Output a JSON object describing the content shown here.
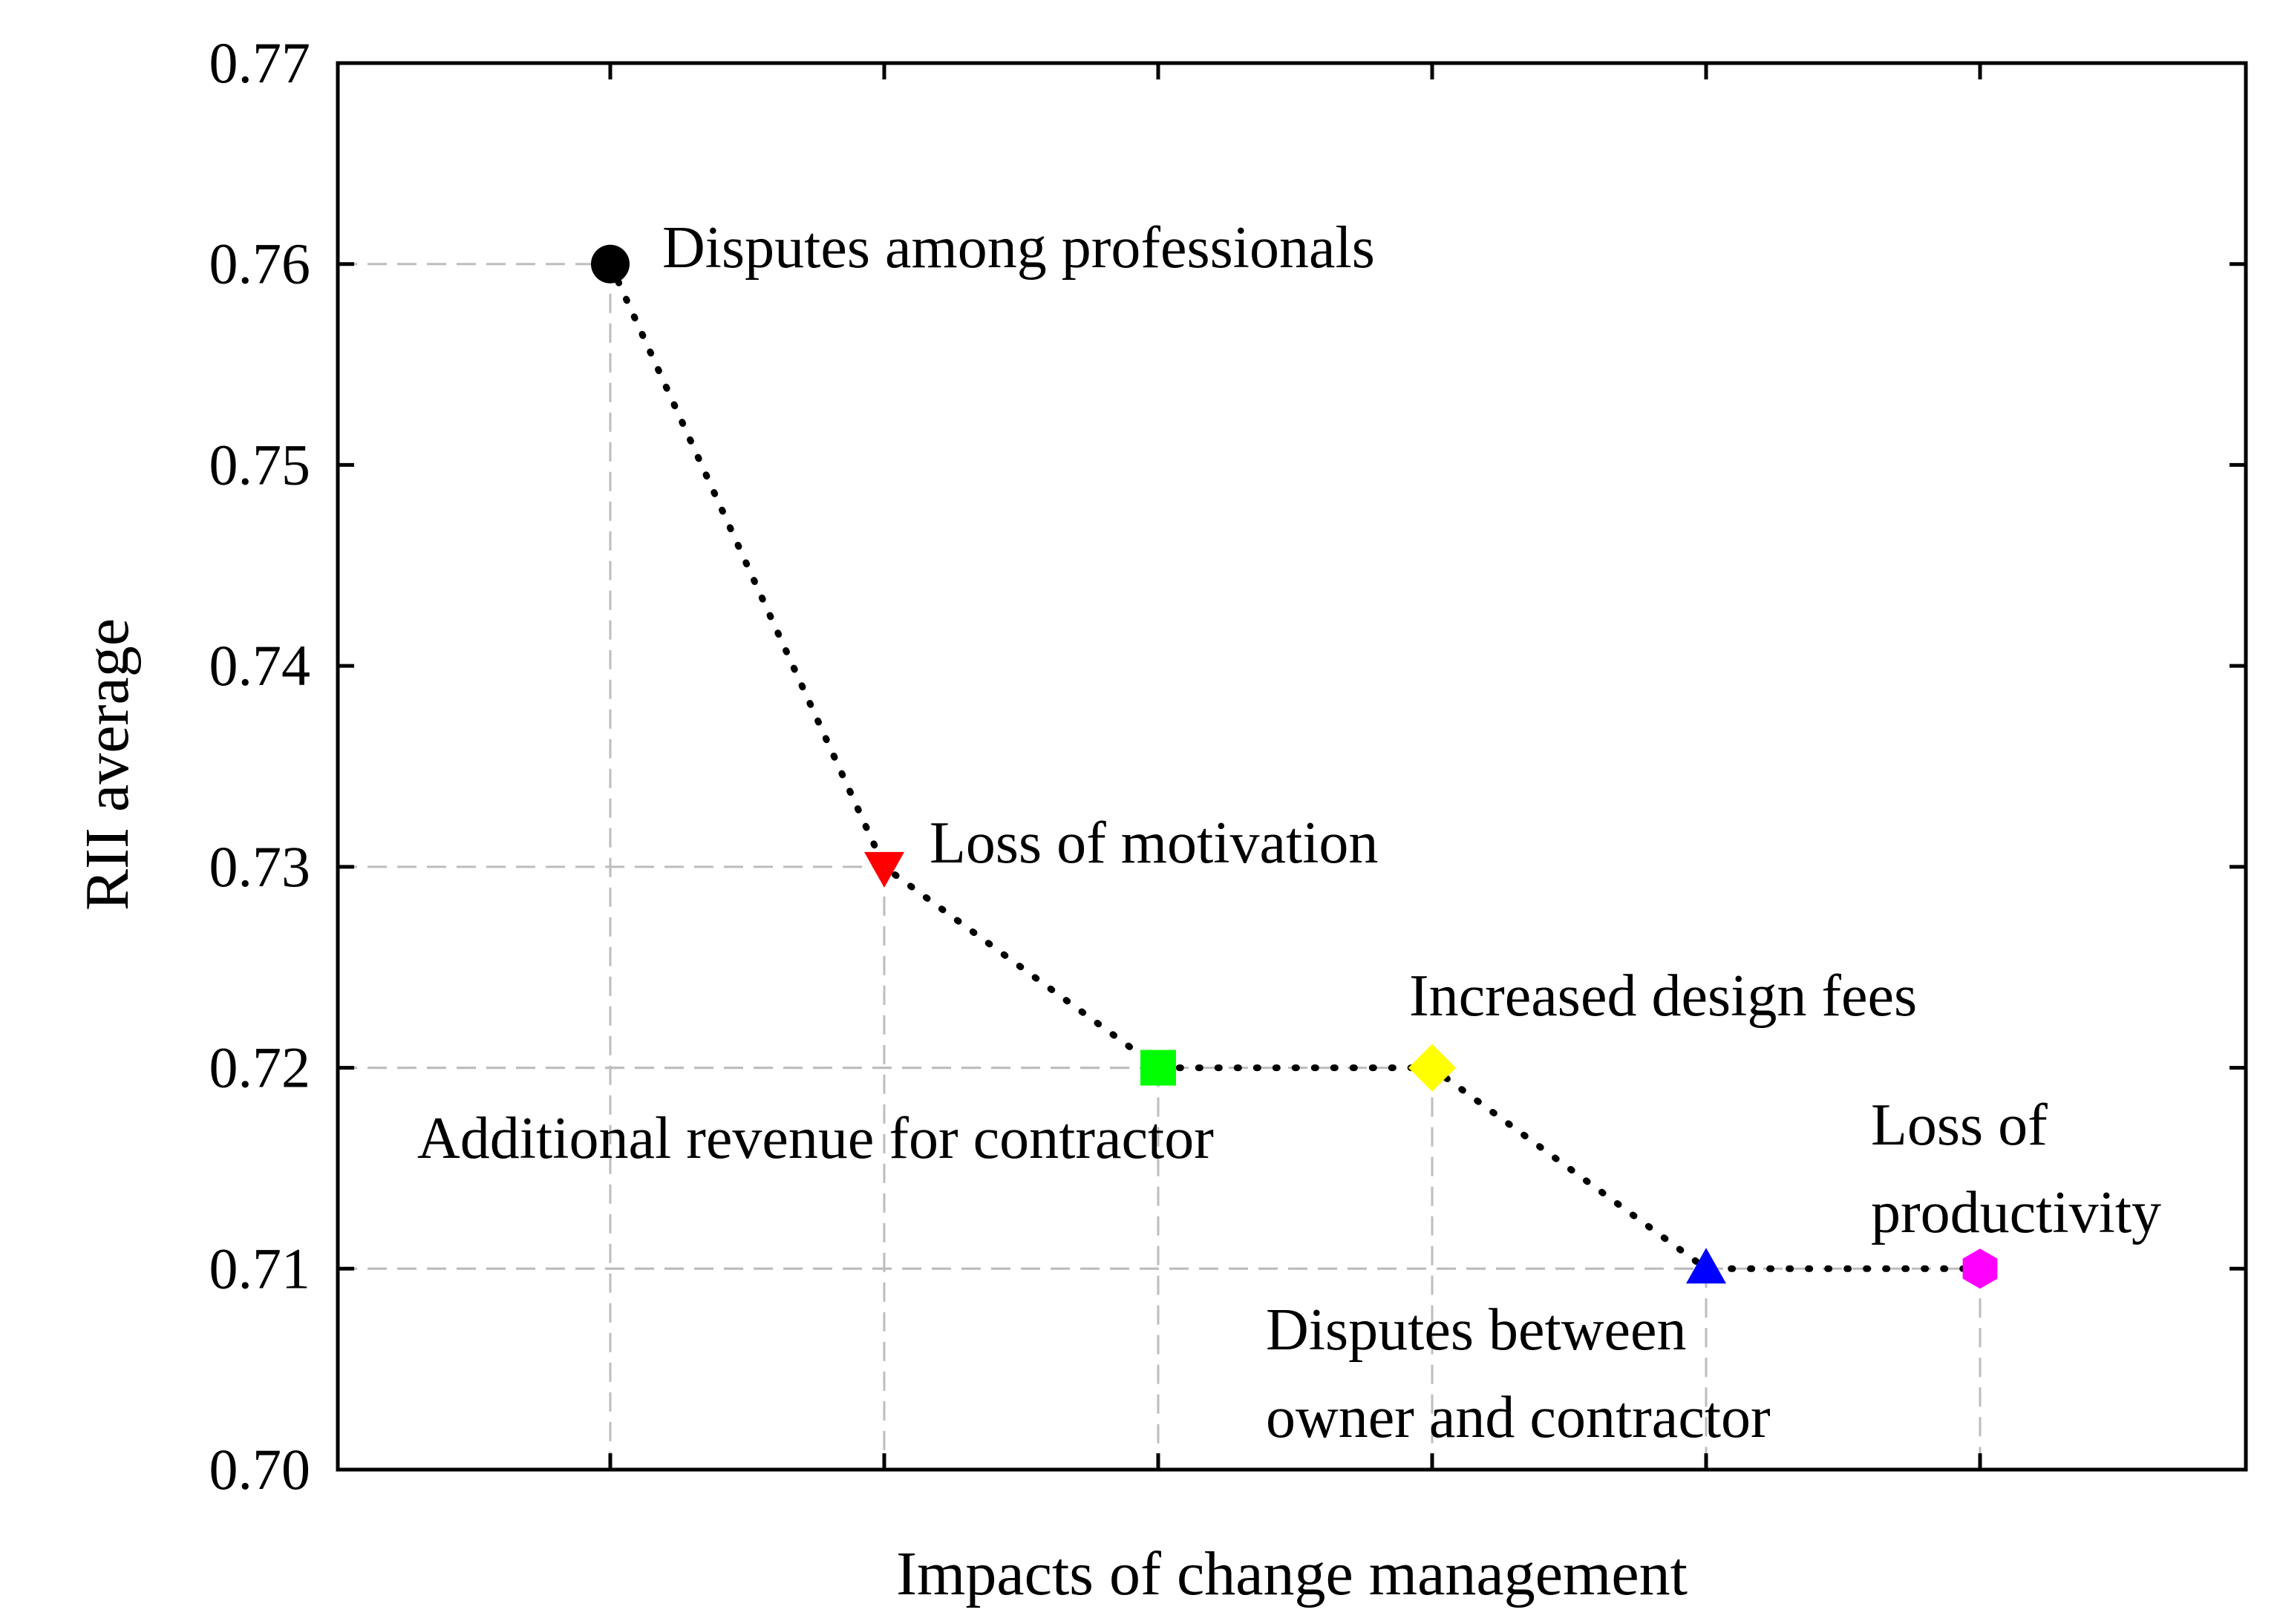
{
  "chart_data": {
    "type": "line",
    "title": "",
    "xlabel": "Impacts of change management",
    "ylabel": "RII average",
    "ylim": [
      0.7,
      0.77
    ],
    "yticks": [
      "0.70",
      "0.71",
      "0.72",
      "0.73",
      "0.74",
      "0.75",
      "0.76",
      "0.77"
    ],
    "grid": "dashed guides from points to axes",
    "line_style": "dotted",
    "points": [
      {
        "x": 1,
        "value": 0.76,
        "label_lines": [
          "Disputes among professionals"
        ],
        "marker": "circle",
        "color": "#000000"
      },
      {
        "x": 2,
        "value": 0.73,
        "label_lines": [
          "Loss of motivation"
        ],
        "marker": "triangle-down",
        "color": "#ff0000"
      },
      {
        "x": 3,
        "value": 0.72,
        "label_lines": [
          "Additional revenue for contractor"
        ],
        "marker": "square",
        "color": "#00ff00"
      },
      {
        "x": 4,
        "value": 0.72,
        "label_lines": [
          "Increased design fees"
        ],
        "marker": "diamond",
        "color": "#ffff00"
      },
      {
        "x": 5,
        "value": 0.71,
        "label_lines": [
          "Disputes between",
          "owner and contractor"
        ],
        "marker": "triangle-up",
        "color": "#0000ff"
      },
      {
        "x": 6,
        "value": 0.71,
        "label_lines": [
          "Loss of",
          "productivity"
        ],
        "marker": "hexagon",
        "color": "#ff00ff"
      }
    ]
  }
}
